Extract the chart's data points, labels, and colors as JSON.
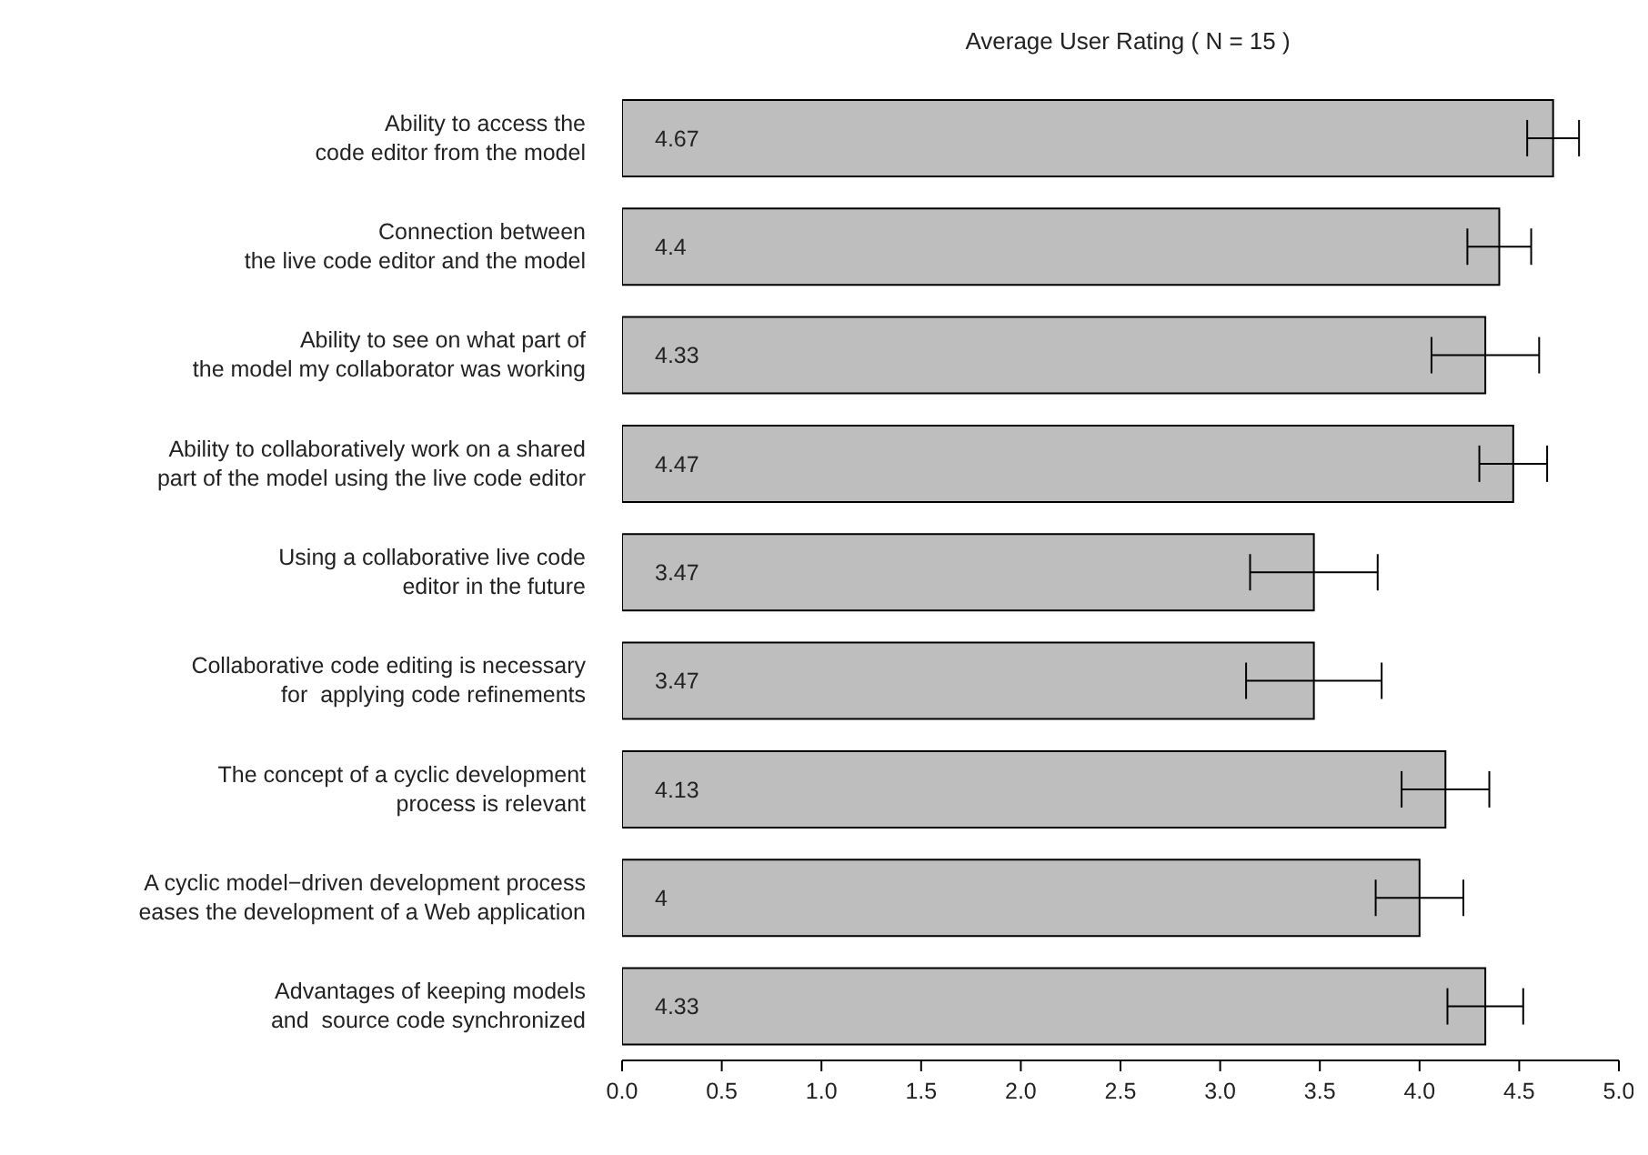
{
  "chart_data": {
    "type": "bar",
    "orientation": "horizontal",
    "title": "Average User Rating ( N = 15 )",
    "categories": [
      "Ability to access the\ncode editor from the model",
      "Connection between\nthe live code editor and the model",
      "Ability to see on what part of\nthe model my collaborator was working",
      "Ability to collaboratively work on a shared\npart of the model using the live code editor",
      "Using a collaborative live code\neditor in the future",
      "Collaborative code editing is necessary\nfor  applying code refinements",
      "The concept of a cyclic development\nprocess is relevant",
      "A cyclic model−driven development process\neases the development of a Web application",
      "Advantages of keeping models\nand  source code synchronized"
    ],
    "values": [
      4.67,
      4.4,
      4.33,
      4.47,
      3.47,
      3.47,
      4.13,
      4,
      4.33
    ],
    "errors": [
      0.13,
      0.16,
      0.27,
      0.17,
      0.32,
      0.34,
      0.22,
      0.22,
      0.19
    ],
    "color": "#bebebe",
    "xlim": [
      0,
      5
    ],
    "xticks": [
      {
        "value": 0,
        "label": "0.0"
      },
      {
        "value": 0.5,
        "label": "0.5"
      },
      {
        "value": 1,
        "label": "1.0"
      },
      {
        "value": 1.5,
        "label": "1.5"
      },
      {
        "value": 2,
        "label": "2.0"
      },
      {
        "value": 2.5,
        "label": "2.5"
      },
      {
        "value": 3,
        "label": "3.0"
      },
      {
        "value": 3.5,
        "label": "3.5"
      },
      {
        "value": 4,
        "label": "4.0"
      },
      {
        "value": 4.5,
        "label": "4.5"
      },
      {
        "value": 5,
        "label": "5.0"
      }
    ],
    "data_labels": true,
    "grid": false,
    "legend": false
  }
}
